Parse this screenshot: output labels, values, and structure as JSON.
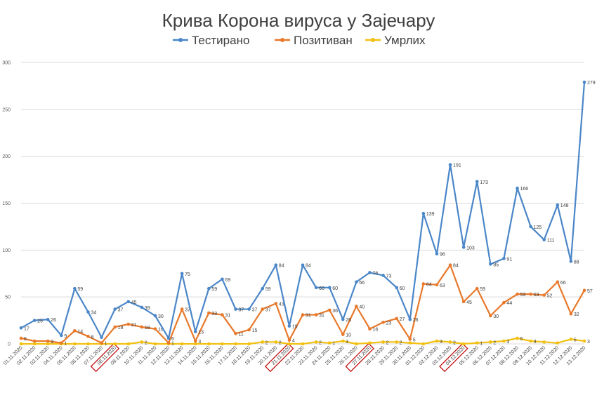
{
  "chart_data": {
    "type": "line",
    "title": "Крива Корона вируса у Зајечару",
    "legend_position": "top",
    "grid": true,
    "ylim": [
      0,
      300
    ],
    "y_ticks": [
      0,
      50,
      100,
      150,
      200,
      250,
      300
    ],
    "categories": [
      "01.11.2020",
      "02.11.2020",
      "03.11.2020",
      "04.11.2020",
      "05.11.2020",
      "06.11.2020",
      "07.11.2020",
      "08.11.2020",
      "09.11.2020",
      "10.11.2020",
      "11.11.2020",
      "12.11.2020",
      "13.11.2020",
      "14.11.2020",
      "15.11.2020",
      "16.11.2020",
      "17.11.2020",
      "18.11.2020",
      "19.11.2020",
      "20.11.2020",
      "21.11.2020",
      "22.11.2020",
      "23.11.2020",
      "24.11.2020",
      "25.11.2020",
      "26.11.2020",
      "27.11.2020",
      "28.11.2020",
      "29.11.2020",
      "30.11.2020",
      "01.12.2020",
      "02.12.2020",
      "03.12.2020",
      "04.12.2020",
      "05.12.2020",
      "06.12.2020",
      "07.12.2020",
      "08.12.2020",
      "09.12.2020",
      "10.12.2020",
      "11.12.2020",
      "12.12.2020",
      "13.12.2020"
    ],
    "highlighted_categories": [
      "08.11.2020",
      "21.11.2020",
      "27.11.2020",
      "04.12.2020"
    ],
    "series": [
      {
        "name": "Тестирано",
        "color": "#4a86c8",
        "values": [
          17,
          25,
          26,
          9,
          59,
          34,
          7,
          37,
          45,
          39,
          30,
          6,
          75,
          13,
          59,
          69,
          37,
          37,
          59,
          84,
          19,
          84,
          60,
          60,
          26,
          66,
          76,
          73,
          60,
          26,
          139,
          96,
          191,
          103,
          173,
          85,
          91,
          166,
          125,
          111,
          148,
          88,
          279
        ]
      },
      {
        "name": "Позитиван",
        "color": "#e8782a",
        "values": [
          6,
          3,
          3,
          1,
          14,
          8,
          1,
          18,
          21,
          18,
          16,
          1,
          37,
          3,
          33,
          31,
          11,
          15,
          37,
          43,
          4,
          31,
          31,
          36,
          10,
          40,
          16,
          23,
          27,
          5,
          64,
          63,
          84,
          45,
          59,
          30,
          44,
          53,
          53,
          52,
          66,
          32,
          57
        ]
      },
      {
        "name": "Умрлих",
        "color": "#f2c011",
        "values": [
          0,
          0,
          0,
          0,
          0,
          0,
          0,
          0,
          0,
          2,
          0,
          0,
          0,
          0,
          0,
          0,
          0,
          0,
          2,
          2,
          0,
          0,
          2,
          1,
          3,
          0,
          1,
          2,
          2,
          1,
          0,
          3,
          2,
          0,
          1,
          2,
          3,
          6,
          3,
          2,
          1,
          5,
          3
        ]
      }
    ],
    "point_labels": {
      "Тестирано": [
        17,
        25,
        26,
        9,
        59,
        34,
        null,
        37,
        45,
        39,
        30,
        6,
        75,
        13,
        59,
        69,
        37,
        37,
        59,
        84,
        19,
        84,
        60,
        60,
        26,
        66,
        76,
        73,
        60,
        26,
        139,
        96,
        191,
        103,
        173,
        85,
        91,
        166,
        125,
        111,
        148,
        88,
        279
      ],
      "Позитиван": [
        6,
        null,
        3,
        1,
        14,
        8,
        1,
        18,
        21,
        18,
        16,
        1,
        37,
        3,
        33,
        31,
        11,
        15,
        37,
        43,
        4,
        31,
        31,
        36,
        10,
        40,
        16,
        23,
        27,
        5,
        64,
        63,
        84,
        45,
        59,
        30,
        44,
        53,
        53,
        52,
        66,
        32,
        57
      ],
      "Умрлих": [
        null,
        null,
        null,
        null,
        null,
        null,
        null,
        null,
        null,
        2,
        null,
        null,
        null,
        null,
        null,
        null,
        null,
        null,
        2,
        2,
        null,
        null,
        2,
        1,
        3,
        null,
        null,
        2,
        2,
        null,
        null,
        3,
        2,
        null,
        1,
        2,
        3,
        6,
        3,
        null,
        null,
        5,
        3
      ]
    }
  }
}
